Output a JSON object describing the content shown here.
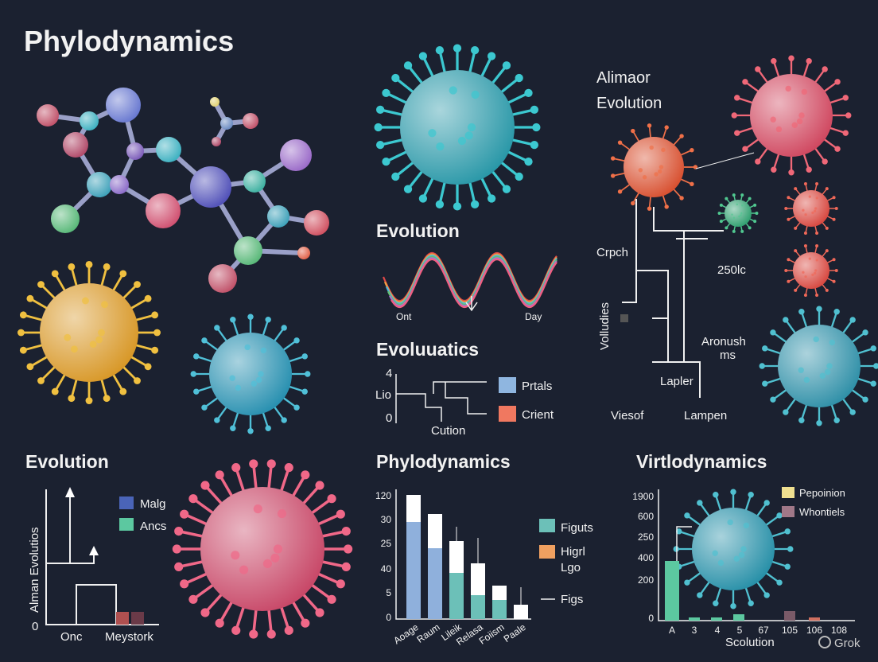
{
  "header": {
    "title": "Phylodynamics"
  },
  "top_right": {
    "title": [
      "Alimaor",
      "Evolution"
    ],
    "labels": [
      "Crpch",
      "250lc",
      "Volludies",
      "Aronush",
      "ms",
      "Lapler",
      "Viesof",
      "Lampen"
    ]
  },
  "middle": {
    "title": "Evolution",
    "strand_labels": [
      "Ont",
      "Day"
    ]
  },
  "tree_panel": {
    "title": "Evoluuatics",
    "ticks": [
      "4",
      "Lio",
      "0"
    ],
    "legend": [
      "Prtals",
      "Crient"
    ],
    "x_label": "Cution"
  },
  "bottom_left": {
    "title": "Evolution",
    "legend": [
      "Malg",
      "Ancs"
    ],
    "y_label": "Alman Evolutios",
    "zero": "0",
    "x_labels": [
      "Onc",
      "Meystork"
    ]
  },
  "bottom_middle": {
    "title": "Phylodynamics",
    "ticks": [
      "120",
      "30",
      "25",
      "40",
      "5",
      "0"
    ],
    "x_labels": [
      "Aoage",
      "Raum",
      "Lileik",
      "Relasa",
      "Foiism",
      "Paale"
    ],
    "legend": [
      "Figuts",
      "Higrl",
      "Lgo",
      "Figs"
    ]
  },
  "bottom_right": {
    "title": "Virtlodynamics",
    "legend": [
      "Pepoinion",
      "Whontiels"
    ],
    "ticks": [
      "1900",
      "600",
      "250",
      "400",
      "200",
      "0"
    ],
    "x_labels": [
      "A",
      "3",
      "4",
      "5",
      "67",
      "105",
      "106",
      "108"
    ],
    "x_label": "Scolution"
  },
  "watermark": "Grok"
}
